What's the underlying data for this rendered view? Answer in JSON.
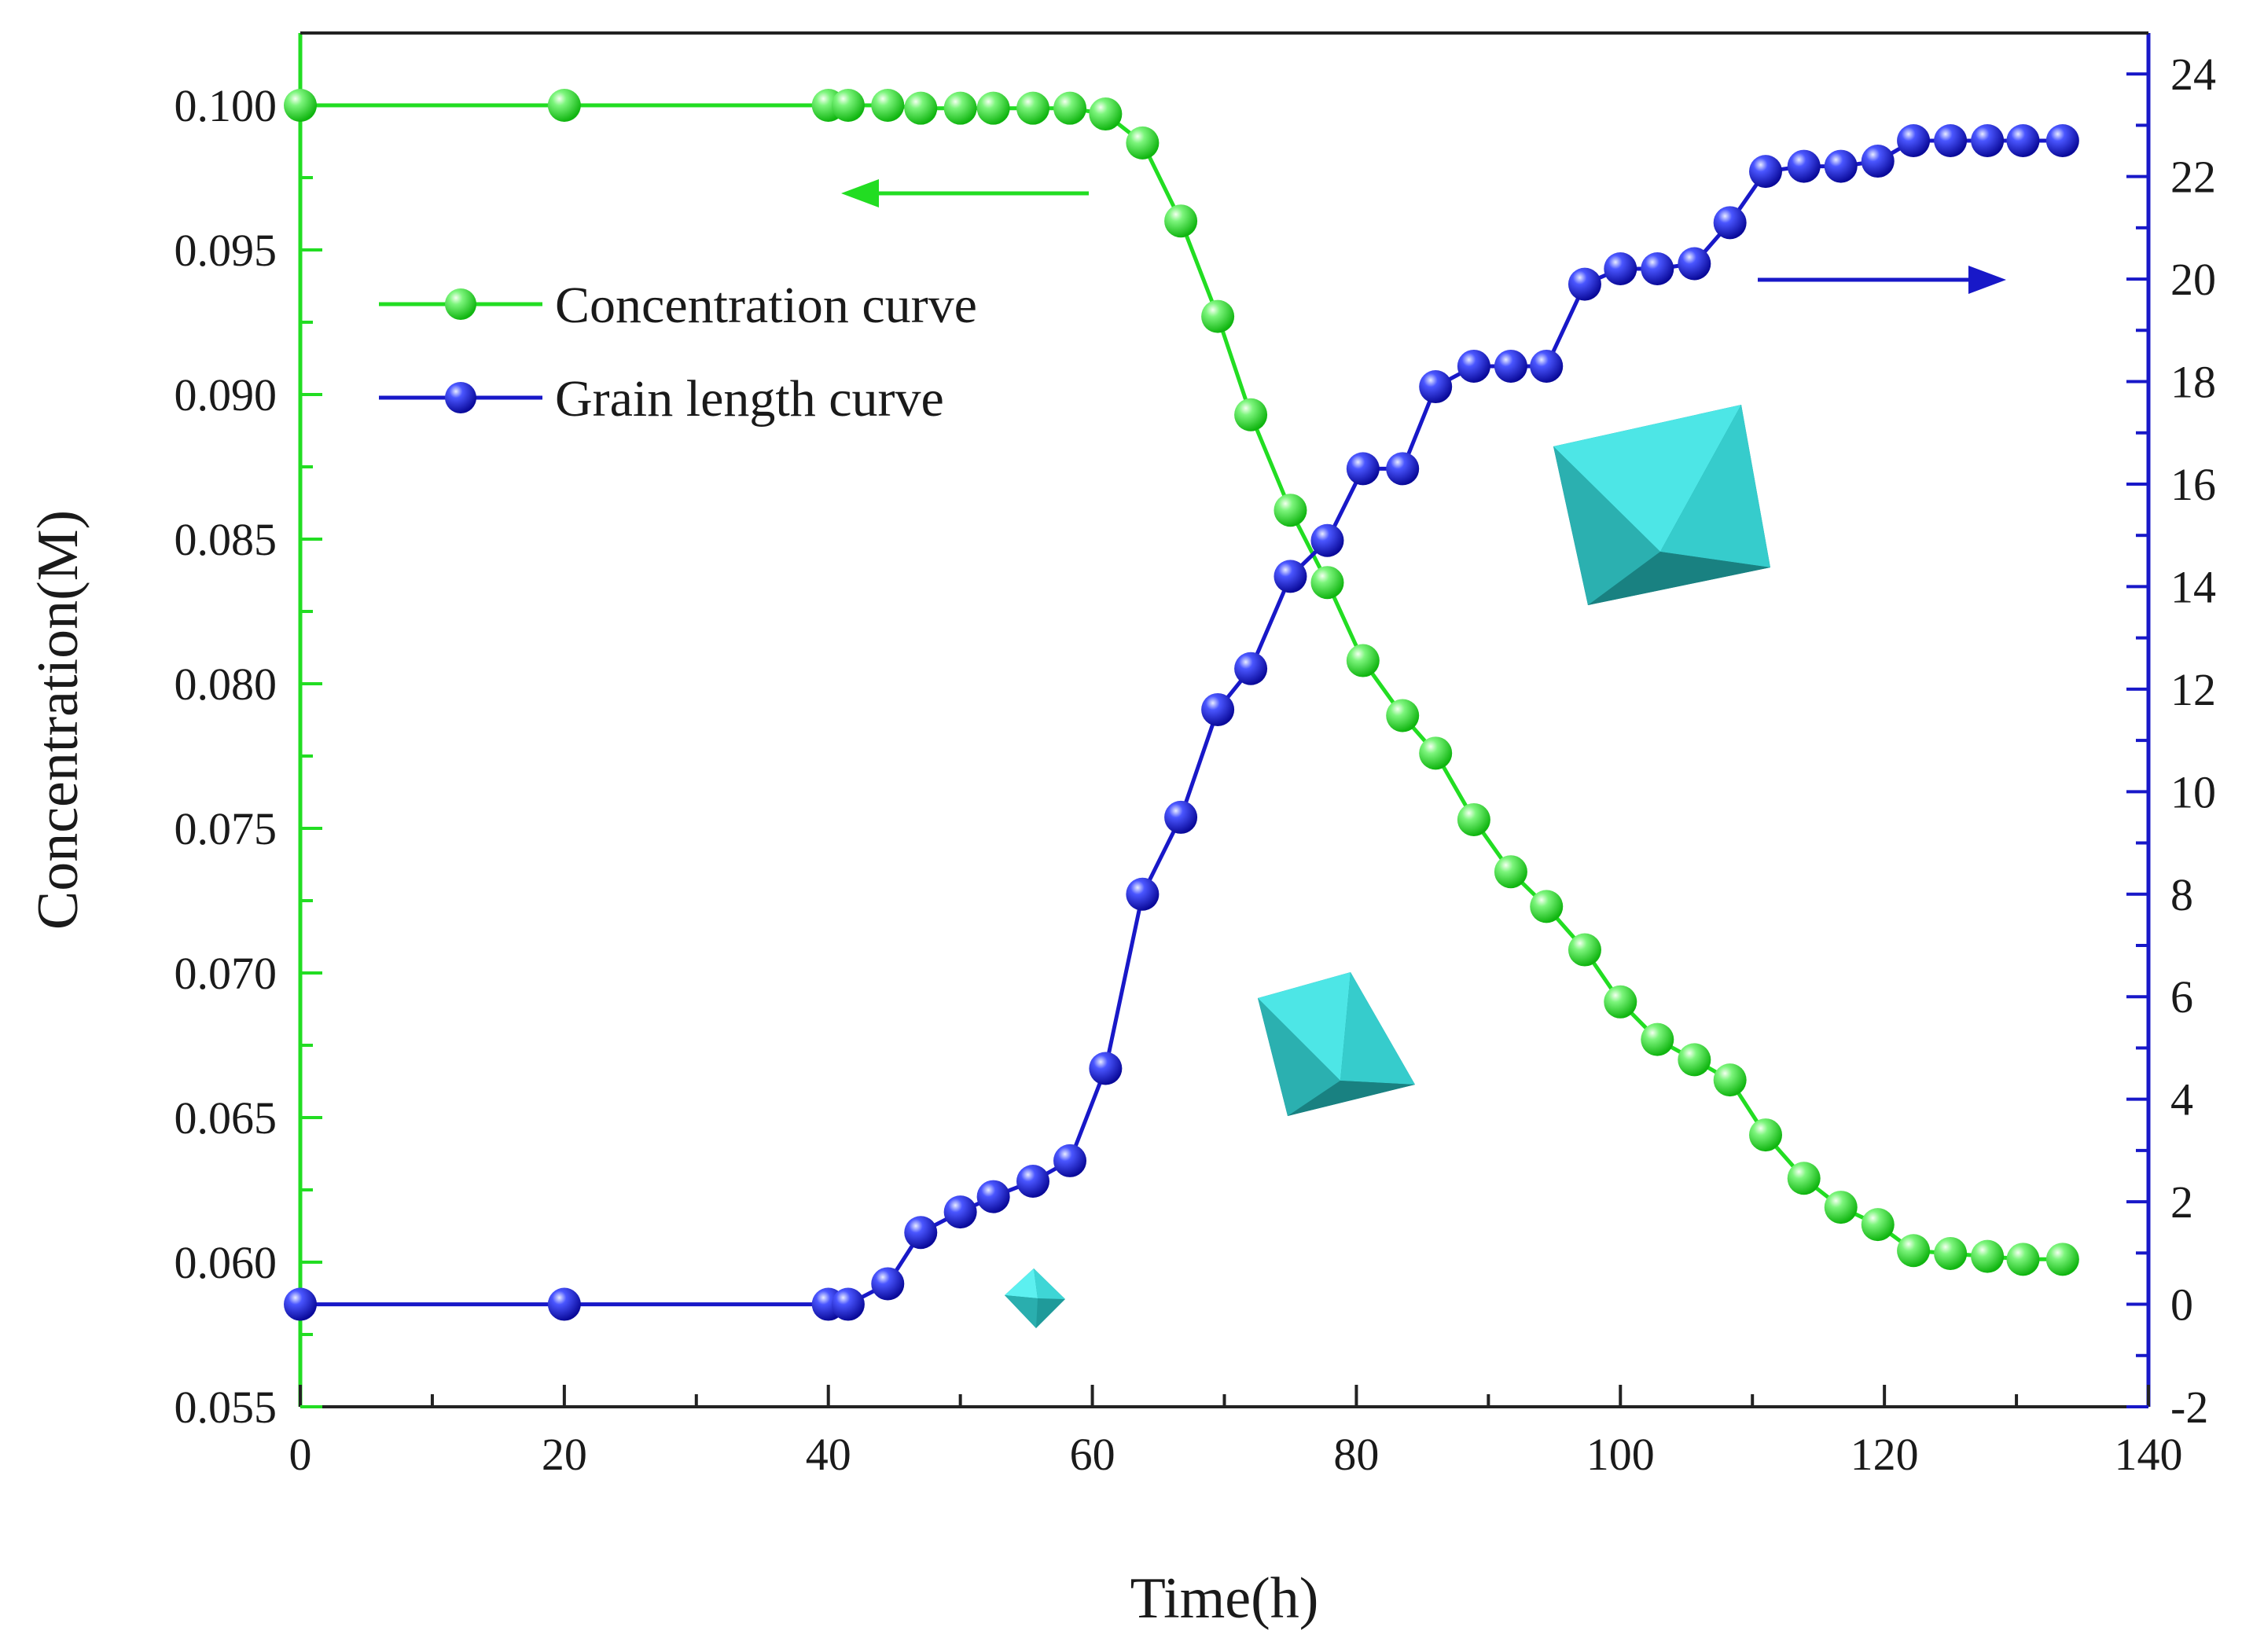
{
  "chart_data": {
    "type": "line",
    "title": "",
    "xlabel": "Time(h)",
    "ylabel": "Concentration(M)",
    "y2label": "",
    "xlim": [
      0,
      140
    ],
    "ylim": [
      0.055,
      0.1025
    ],
    "y2lim": [
      -2,
      24.8
    ],
    "grid": false,
    "legend_position": "top-left",
    "x_ticks": [
      "0",
      "20",
      "40",
      "60",
      "80",
      "100",
      "120",
      "140"
    ],
    "y_ticks": [
      "0.055",
      "0.060",
      "0.065",
      "0.070",
      "0.075",
      "0.080",
      "0.085",
      "0.090",
      "0.095",
      "0.100"
    ],
    "y2_ticks": [
      "-2",
      "0",
      "2",
      "4",
      "6",
      "8",
      "10",
      "12",
      "14",
      "16",
      "18",
      "20",
      "22",
      "24"
    ],
    "colors": {
      "concentration": "#22dd22",
      "grain": "#1818c8",
      "crystal": "#2ab8b8"
    },
    "series": [
      {
        "name": "Concentration curve",
        "axis": "left",
        "x": [
          0,
          20,
          40,
          41.5,
          44.5,
          47,
          50,
          52.5,
          55.5,
          58.3,
          61,
          63.8,
          66.7,
          69.5,
          72,
          75,
          77.8,
          80.5,
          83.5,
          86,
          88.9,
          91.7,
          94.4,
          97.3,
          100,
          102.8,
          105.6,
          108.3,
          111,
          113.9,
          116.7,
          119.5,
          122.2,
          125,
          127.8,
          130.5,
          133.5
        ],
        "y": [
          0.1,
          0.1,
          0.1,
          0.1,
          0.1,
          0.0999,
          0.0999,
          0.0999,
          0.0999,
          0.0999,
          0.0997,
          0.0987,
          0.096,
          0.0927,
          0.0893,
          0.086,
          0.0835,
          0.0808,
          0.0789,
          0.0776,
          0.0753,
          0.0735,
          0.0723,
          0.0708,
          0.069,
          0.0677,
          0.067,
          0.0663,
          0.0644,
          0.0629,
          0.0619,
          0.0613,
          0.0604,
          0.0603,
          0.0602,
          0.0601,
          0.0601
        ]
      },
      {
        "name": "Grain length curve",
        "axis": "right",
        "x": [
          0,
          20,
          40,
          41.5,
          44.5,
          47,
          50,
          52.5,
          55.5,
          58.3,
          61,
          63.8,
          66.7,
          69.5,
          72,
          75,
          77.8,
          80.5,
          83.5,
          86,
          88.9,
          91.7,
          94.4,
          97.3,
          100,
          102.8,
          105.6,
          108.3,
          111,
          113.9,
          116.7,
          119.5,
          122.2,
          125,
          127.8,
          130.5,
          133.5
        ],
        "y": [
          0,
          0,
          0,
          0,
          0.4,
          1.4,
          1.8,
          2.1,
          2.4,
          2.8,
          4.6,
          8.0,
          9.5,
          11.6,
          12.4,
          14.2,
          14.9,
          16.3,
          16.3,
          17.9,
          18.3,
          18.3,
          18.3,
          19.9,
          20.2,
          20.2,
          20.3,
          21.1,
          22.1,
          22.2,
          22.2,
          22.3,
          22.7,
          22.7,
          22.7,
          22.7,
          22.7
        ]
      }
    ],
    "annotations": [
      {
        "kind": "arrow",
        "direction": "left",
        "series": "Concentration curve"
      },
      {
        "kind": "arrow",
        "direction": "right",
        "series": "Grain length curve"
      },
      {
        "kind": "crystal",
        "size": "small",
        "near_x": 57.5
      },
      {
        "kind": "crystal",
        "size": "medium",
        "near_x": 81
      },
      {
        "kind": "crystal",
        "size": "large",
        "near_x": 106
      }
    ]
  }
}
